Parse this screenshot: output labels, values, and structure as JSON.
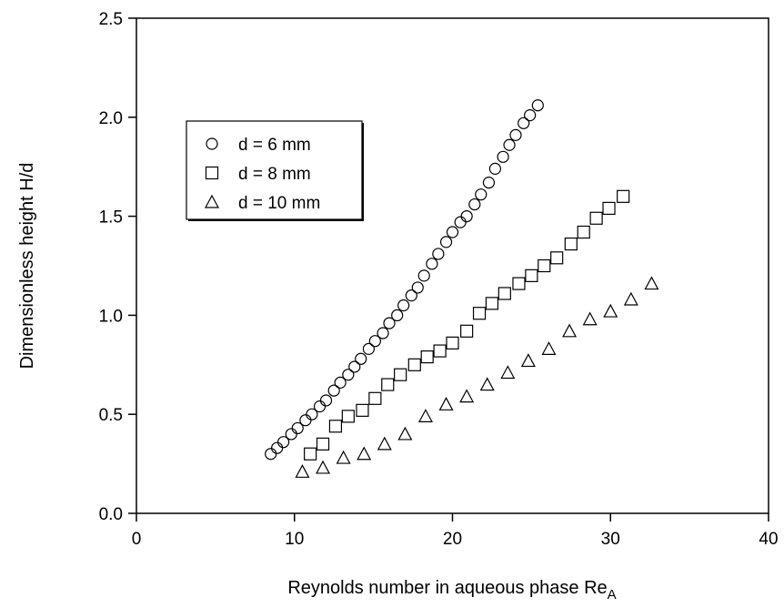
{
  "chart_data": {
    "type": "scatter",
    "title": "",
    "xlabel": "Reynolds number in aqueous phase Re",
    "xlabel_subscript": "A",
    "ylabel": "Dimensionless height H/d",
    "xlim": [
      0,
      40
    ],
    "ylim": [
      0.0,
      2.5
    ],
    "x_ticks": [
      "0",
      "10",
      "20",
      "30",
      "40"
    ],
    "y_ticks": [
      "0.0",
      "0.5",
      "1.0",
      "1.5",
      "2.0",
      "2.5"
    ],
    "grid": false,
    "legend_position": "upper-left",
    "series": [
      {
        "name": "d = 6 mm",
        "marker": "circle",
        "x": [
          8.5,
          8.9,
          9.3,
          9.8,
          10.2,
          10.7,
          11.1,
          11.6,
          12.0,
          12.5,
          12.9,
          13.4,
          13.8,
          14.2,
          14.7,
          15.1,
          15.6,
          16.0,
          16.5,
          16.9,
          17.4,
          17.8,
          18.2,
          18.7,
          19.1,
          19.6,
          20.0,
          20.5,
          20.9,
          21.4,
          21.8,
          22.3,
          22.7,
          23.2,
          23.6,
          24.0,
          24.5,
          24.9,
          25.4
        ],
        "y": [
          0.3,
          0.33,
          0.36,
          0.4,
          0.43,
          0.47,
          0.5,
          0.54,
          0.57,
          0.62,
          0.66,
          0.7,
          0.74,
          0.78,
          0.83,
          0.87,
          0.91,
          0.96,
          1.0,
          1.05,
          1.1,
          1.14,
          1.2,
          1.26,
          1.31,
          1.37,
          1.42,
          1.47,
          1.5,
          1.56,
          1.61,
          1.67,
          1.74,
          1.8,
          1.86,
          1.91,
          1.97,
          2.01,
          2.06
        ]
      },
      {
        "name": "d = 8 mm",
        "marker": "square",
        "x": [
          11.0,
          11.8,
          12.6,
          13.4,
          14.3,
          15.1,
          15.9,
          16.7,
          17.6,
          18.4,
          19.2,
          20.0,
          20.9,
          21.7,
          22.5,
          23.3,
          24.2,
          25.0,
          25.8,
          26.6,
          27.5,
          28.3,
          29.1,
          29.9,
          30.8
        ],
        "y": [
          0.3,
          0.35,
          0.44,
          0.49,
          0.52,
          0.58,
          0.65,
          0.7,
          0.75,
          0.79,
          0.82,
          0.86,
          0.92,
          1.01,
          1.06,
          1.11,
          1.16,
          1.2,
          1.25,
          1.29,
          1.36,
          1.42,
          1.49,
          1.54,
          1.6
        ]
      },
      {
        "name": "d = 10 mm",
        "marker": "triangle",
        "x": [
          10.5,
          11.8,
          13.1,
          14.4,
          15.7,
          17.0,
          18.3,
          19.6,
          20.9,
          22.2,
          23.5,
          24.8,
          26.1,
          27.4,
          28.7,
          30.0,
          31.3,
          32.6
        ],
        "y": [
          0.21,
          0.23,
          0.28,
          0.3,
          0.35,
          0.4,
          0.49,
          0.55,
          0.59,
          0.65,
          0.71,
          0.77,
          0.83,
          0.92,
          0.98,
          1.02,
          1.08,
          1.16
        ]
      }
    ]
  }
}
